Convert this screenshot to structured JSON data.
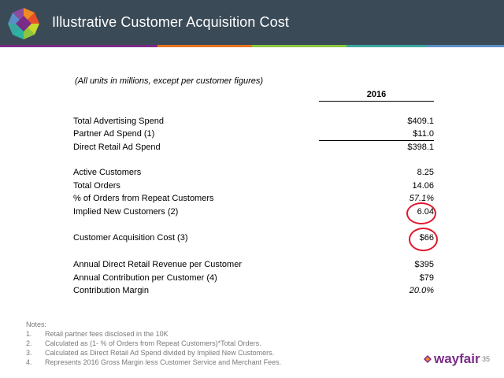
{
  "slide": {
    "title": "Illustrative Customer Acquisition Cost",
    "units_note": "(All units in millions, except per customer figures)",
    "column_header": "2016",
    "colors": {
      "header_bg": "#3a4a57",
      "circle": "#e0182d",
      "brand": "#7b2b88",
      "stripe": [
        "#7b2b88",
        "#e8741e",
        "#8cc63f",
        "#3aa8a0",
        "#5a8fc8"
      ]
    },
    "rows": [
      {
        "label": "Total Advertising Spend",
        "value": "$409.1"
      },
      {
        "label": "Partner Ad Spend (1)",
        "value": "$11.0"
      },
      {
        "label": "Direct Retail Ad Spend",
        "value": "$398.1"
      },
      {
        "label": "Active Customers",
        "value": "8.25"
      },
      {
        "label": "Total Orders",
        "value": "14.06"
      },
      {
        "label": "% of Orders from Repeat Customers",
        "value": "57.1%"
      },
      {
        "label": "Implied New Customers (2)",
        "value": "6.04"
      },
      {
        "label": "Customer Acquisition Cost (3)",
        "value": "$66"
      },
      {
        "label": "Annual Direct Retail Revenue per Customer",
        "value": "$395"
      },
      {
        "label": "Annual Contribution per Customer (4)",
        "value": "$79"
      },
      {
        "label": "Contribution Margin",
        "value": "20.0%"
      }
    ],
    "notes_title": "Notes:",
    "notes": [
      {
        "num": "1.",
        "text": "Retail partner fees disclosed in the 10K"
      },
      {
        "num": "2.",
        "text": "Calculated as (1- % of Orders from Repeat Customers)*Total Orders."
      },
      {
        "num": "3.",
        "text": "Calculated as Direct Retail Ad Spend divided by Implied New Customers."
      },
      {
        "num": "4.",
        "text": "Represents 2016 Gross Margin less Customer Service and Merchant Fees."
      }
    ],
    "brand_name": "wayfair",
    "page_number": "35"
  }
}
